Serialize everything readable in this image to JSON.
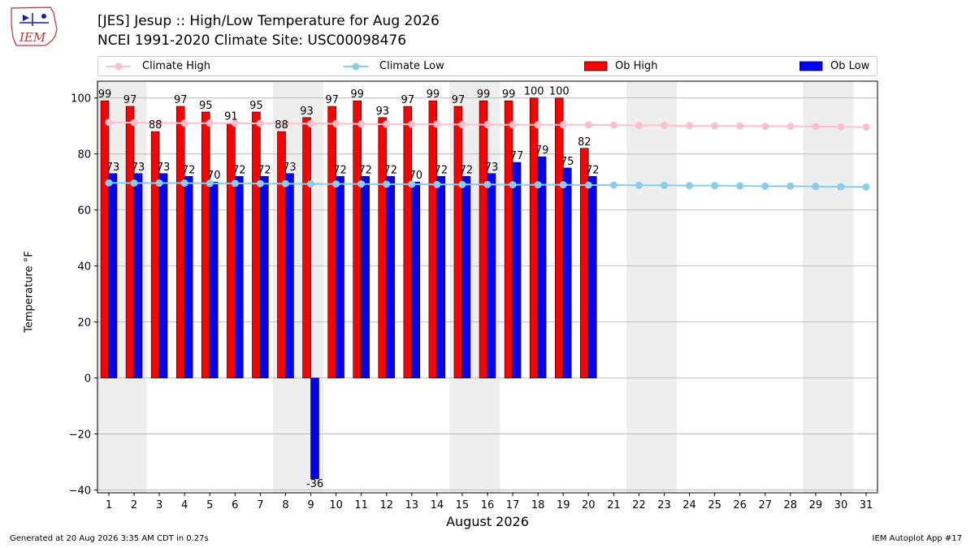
{
  "header": {
    "logo_text": "IEM",
    "title_line1": "[JES] Jesup :: High/Low Temperature for Aug 2026",
    "title_line2": "NCEI 1991-2020 Climate Site: USC00098476"
  },
  "footer": {
    "left": "Generated at 20 Aug 2026 3:35 AM CDT in 0.27s",
    "right": "IEM Autoplot App #17"
  },
  "colors": {
    "ob_high": "#ff0000",
    "ob_low": "#0000ff",
    "climate_high": "#ffc0cb",
    "climate_low": "#87ceeb",
    "weekend_shade": "#eeeeee",
    "grid": "#b0b0b0"
  },
  "legend": {
    "placement": "top",
    "items": [
      {
        "label": "Climate High",
        "kind": "line",
        "color": "#ffc0cb"
      },
      {
        "label": "Climate Low",
        "kind": "line",
        "color": "#87ceeb"
      },
      {
        "label": "Ob High",
        "kind": "bar",
        "color": "#ff0000"
      },
      {
        "label": "Ob Low",
        "kind": "bar",
        "color": "#0000ff"
      }
    ]
  },
  "chart_data": {
    "type": "bar",
    "xlabel": "August 2026",
    "ylabel": "Temperature °F",
    "ylim": [
      -41,
      106
    ],
    "yticks": [
      -40,
      -20,
      0,
      20,
      40,
      60,
      80,
      100
    ],
    "grid": "horizontal",
    "days": [
      1,
      2,
      3,
      4,
      5,
      6,
      7,
      8,
      9,
      10,
      11,
      12,
      13,
      14,
      15,
      16,
      17,
      18,
      19,
      20,
      21,
      22,
      23,
      24,
      25,
      26,
      27,
      28,
      29,
      30,
      31
    ],
    "weekend_days": [
      1,
      2,
      8,
      9,
      15,
      16,
      22,
      23,
      29,
      30
    ],
    "ob_high": [
      99,
      97,
      88,
      97,
      95,
      91,
      95,
      88,
      93,
      97,
      99,
      93,
      97,
      99,
      97,
      99,
      99,
      100,
      100,
      82
    ],
    "ob_low": [
      73,
      73,
      73,
      72,
      70,
      72,
      72,
      73,
      -36,
      72,
      72,
      72,
      70,
      72,
      72,
      73,
      77,
      79,
      75,
      72
    ],
    "climate_high": [
      91.3,
      91.2,
      91.1,
      91.0,
      91.0,
      91.0,
      90.9,
      90.9,
      90.8,
      90.8,
      90.7,
      90.6,
      90.6,
      90.6,
      90.5,
      90.5,
      90.4,
      90.4,
      90.4,
      90.4,
      90.3,
      90.2,
      90.2,
      90.1,
      90.0,
      90.0,
      89.9,
      89.9,
      89.8,
      89.7,
      89.6
    ],
    "climate_low": [
      69.7,
      69.6,
      69.6,
      69.6,
      69.5,
      69.5,
      69.4,
      69.4,
      69.3,
      69.3,
      69.3,
      69.2,
      69.2,
      69.1,
      69.1,
      69.1,
      69.0,
      69.0,
      69.0,
      68.9,
      68.9,
      68.8,
      68.8,
      68.7,
      68.7,
      68.6,
      68.5,
      68.5,
      68.4,
      68.3,
      68.2
    ]
  }
}
